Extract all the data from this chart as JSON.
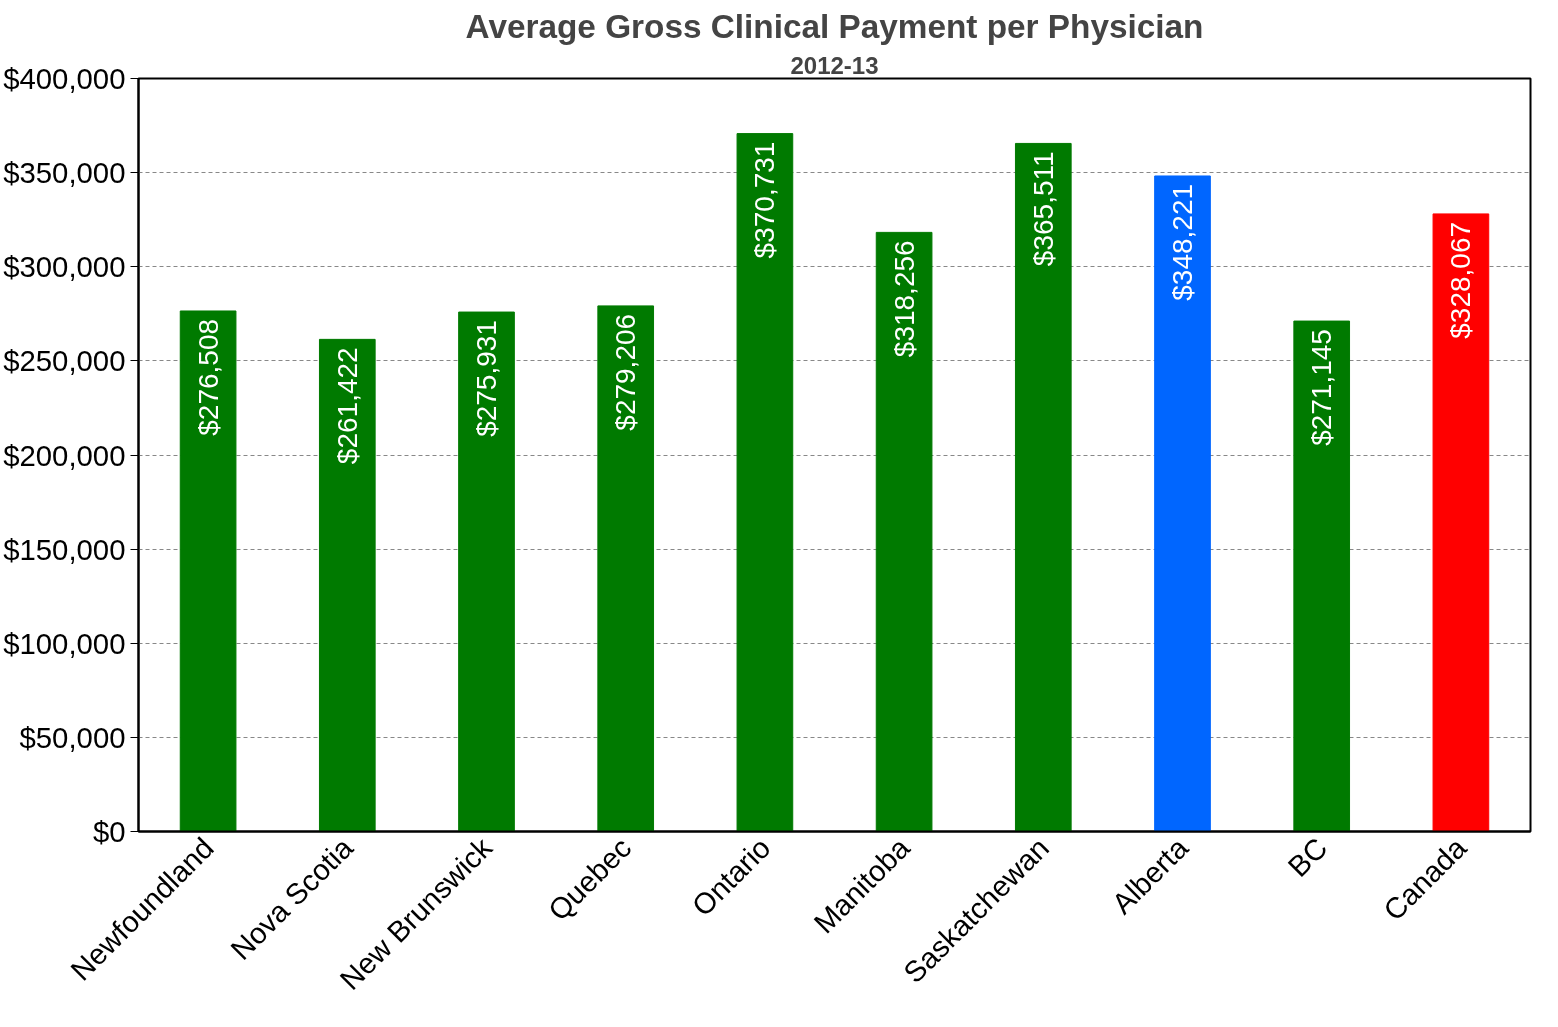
{
  "chart_data": {
    "type": "bar",
    "title": "Average Gross Clinical Payment per Physician",
    "subtitle": "2012-13",
    "categories": [
      "Newfoundland",
      "Nova Scotia",
      "New Brunswick",
      "Quebec",
      "Ontario",
      "Manitoba",
      "Saskatchewan",
      "Alberta",
      "BC",
      "Canada"
    ],
    "values": [
      276508,
      261422,
      275931,
      279206,
      370731,
      318256,
      365511,
      348221,
      271145,
      328067
    ],
    "colors": [
      "#007a00",
      "#007a00",
      "#007a00",
      "#007a00",
      "#007a00",
      "#007a00",
      "#007a00",
      "#0066ff",
      "#007a00",
      "#ff0000"
    ],
    "value_labels": [
      "$276,508",
      "$261,422",
      "$275,931",
      "$279,206",
      "$370,731",
      "$318,256",
      "$365,511",
      "$348,221",
      "$271,145",
      "$328,067"
    ],
    "ylim": [
      0,
      400000
    ],
    "yticks": [
      {
        "value": 0,
        "label": "$0"
      },
      {
        "value": 50000,
        "label": "$50,000"
      },
      {
        "value": 100000,
        "label": "$100,000"
      },
      {
        "value": 150000,
        "label": "$150,000"
      },
      {
        "value": 200000,
        "label": "$200,000"
      },
      {
        "value": 250000,
        "label": "$250,000"
      },
      {
        "value": 300000,
        "label": "$300,000"
      },
      {
        "value": 350000,
        "label": "$350,000"
      },
      {
        "value": 400000,
        "label": "$400,000"
      }
    ],
    "grid": "y"
  }
}
